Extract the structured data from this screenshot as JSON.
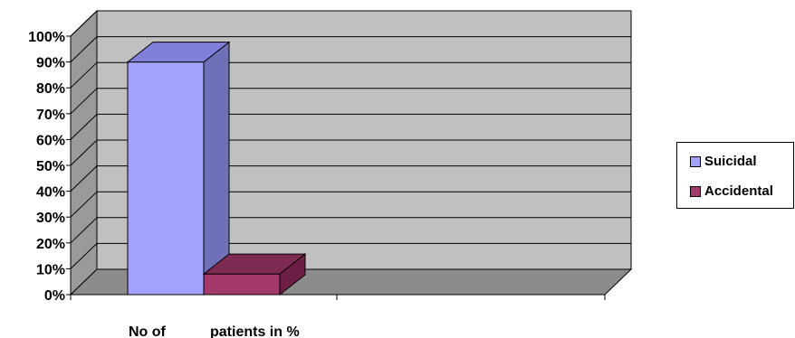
{
  "chart_data": {
    "type": "bar",
    "title": "",
    "xlabel": "",
    "ylabel": "",
    "categories": [
      "No of patients in %"
    ],
    "series": [
      {
        "name": "Suicidal",
        "values": [
          90
        ],
        "color": "#a3a3ff",
        "side_color": "#7070b8",
        "top_color": "#8080dc"
      },
      {
        "name": "Accidental",
        "values": [
          8
        ],
        "color": "#a43a6c",
        "side_color": "#6c1e44",
        "top_color": "#7d2a52"
      }
    ],
    "ylim": [
      0,
      100
    ],
    "yticks": [
      "0%",
      "10%",
      "20%",
      "30%",
      "40%",
      "50%",
      "60%",
      "70%",
      "80%",
      "90%",
      "100%"
    ],
    "grid": true,
    "legend_position": "right",
    "plot_background": "#c0c0c0"
  }
}
